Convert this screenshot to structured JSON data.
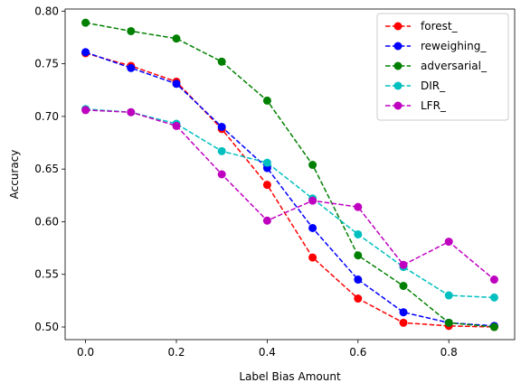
{
  "chart_data": {
    "type": "line",
    "title": "",
    "xlabel": "Label Bias Amount",
    "ylabel": "Accuracy",
    "xlim": [
      -0.045,
      0.945
    ],
    "ylim": [
      0.488,
      0.802
    ],
    "xticks": [
      0.0,
      0.2,
      0.4,
      0.6,
      0.8
    ],
    "xtick_labels": [
      "0.0",
      "0.2",
      "0.4",
      "0.6",
      "0.8"
    ],
    "yticks": [
      0.5,
      0.55,
      0.6,
      0.65,
      0.7,
      0.75,
      0.8
    ],
    "ytick_labels": [
      "0.50",
      "0.55",
      "0.60",
      "0.65",
      "0.70",
      "0.75",
      "0.80"
    ],
    "grid": false,
    "legend_position": "top-right",
    "x": [
      0.0,
      0.1,
      0.2,
      0.3,
      0.4,
      0.5,
      0.6,
      0.7,
      0.8,
      0.9
    ],
    "series": [
      {
        "name": "forest_",
        "color": "#ff0000",
        "marker": "circle",
        "linestyle": "dashed",
        "values": [
          0.76,
          0.748,
          0.733,
          0.688,
          0.635,
          0.566,
          0.527,
          0.504,
          0.501,
          0.5
        ]
      },
      {
        "name": "reweighing_",
        "color": "#0000ff",
        "marker": "circle",
        "linestyle": "dashed",
        "values": [
          0.761,
          0.746,
          0.731,
          0.69,
          0.651,
          0.594,
          0.545,
          0.514,
          0.504,
          0.501
        ]
      },
      {
        "name": "adversarial_",
        "color": "#008000",
        "marker": "circle",
        "linestyle": "dashed",
        "values": [
          0.789,
          0.781,
          0.774,
          0.752,
          0.715,
          0.654,
          0.568,
          0.539,
          0.504,
          0.5
        ]
      },
      {
        "name": "DIR_",
        "color": "#00bfbf",
        "marker": "circle",
        "linestyle": "dashed",
        "values": [
          0.707,
          0.704,
          0.693,
          0.667,
          0.656,
          0.622,
          0.588,
          0.557,
          0.53,
          0.528
        ]
      },
      {
        "name": "LFR_",
        "color": "#bf00bf",
        "marker": "circle",
        "linestyle": "dashed",
        "values": [
          0.706,
          0.704,
          0.691,
          0.645,
          0.601,
          0.62,
          0.614,
          0.559,
          0.581,
          0.545
        ]
      }
    ]
  }
}
